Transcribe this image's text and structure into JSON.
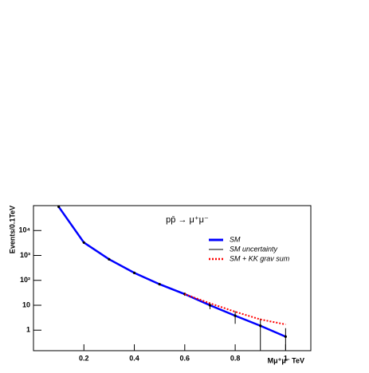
{
  "chart_data": {
    "type": "line",
    "log_y": true,
    "annotation": "pp̄ → μ⁺μ⁻",
    "xlabel": "Mμ⁺μ⁻ TeV",
    "ylabel": "Events/0.1TeV",
    "x": [
      0.1,
      0.2,
      0.3,
      0.4,
      0.5,
      0.6,
      0.7,
      0.8,
      0.9,
      1
    ],
    "series": [
      {
        "name": "SM",
        "color": "#0000ff",
        "values": [
          90000,
          3300,
          700,
          200,
          70,
          28,
          10,
          3.8,
          1.5,
          0.55
        ]
      },
      {
        "name": "SM uncertainty",
        "color": "#000000",
        "errors": [
          1800,
          70,
          15,
          5,
          2.5,
          4,
          3,
          2,
          1.4,
          0.65
        ]
      },
      {
        "name": "SM + KK grav sum",
        "color": "#ff0000",
        "values": [
          null,
          null,
          null,
          null,
          null,
          28,
          12,
          5.5,
          2.7,
          1.7
        ]
      }
    ],
    "xlim": [
      0,
      1.1
    ],
    "ylim": [
      0.15,
      100000
    ],
    "xticks": [
      0.2,
      0.4,
      0.6,
      0.8,
      1
    ],
    "yticks": [
      1,
      10,
      {
        "value": 100,
        "label": "10²"
      },
      {
        "value": 1000,
        "label": "10³"
      },
      {
        "value": 10000,
        "label": "10⁴"
      }
    ],
    "legend": "upper right"
  }
}
